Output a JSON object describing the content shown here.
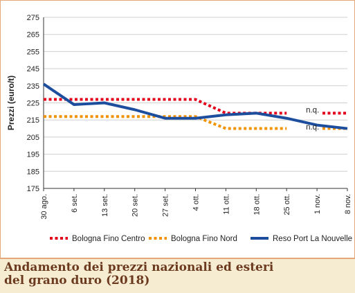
{
  "chart_data": {
    "type": "line",
    "title": "",
    "ylabel": "Prezzi (euro/t)",
    "xlabel": "",
    "ylim": [
      175,
      275
    ],
    "yticks": [
      175,
      185,
      195,
      205,
      215,
      225,
      235,
      245,
      255,
      265,
      275
    ],
    "categories": [
      "30 ago.",
      "6 set.",
      "13 set.",
      "20 set.",
      "27 set.",
      "4 ott.",
      "11 ott.",
      "18 ott.",
      "25 ott.",
      "1 nov.",
      "8 nov."
    ],
    "grid": "horizontal",
    "legend_position": "bottom",
    "series": [
      {
        "name": "Bologna Fino Centro",
        "color": "#e3001b",
        "style": "dotted",
        "values": [
          227,
          227,
          227,
          227,
          227,
          227,
          219,
          219,
          219,
          null,
          219
        ]
      },
      {
        "name": "Bologna Fino Nord",
        "color": "#f39200",
        "style": "dotted",
        "values": [
          217,
          217,
          217,
          217,
          217,
          217,
          210,
          210,
          210,
          null,
          210
        ]
      },
      {
        "name": "Reso Port La Nouvelle",
        "color": "#1d4e9e",
        "style": "solid",
        "values": [
          236,
          224,
          225,
          221,
          216,
          216,
          218,
          219,
          216,
          212,
          210
        ]
      }
    ],
    "annotations": [
      {
        "text": "n.q.",
        "category": "1 nov.",
        "value": 221
      },
      {
        "text": "n.q.",
        "category": "1 nov.",
        "value": 211
      }
    ]
  },
  "caption": {
    "line1": "Andamento dei prezzi nazionali ed esteri",
    "line2": "del grano duro (2018)"
  }
}
